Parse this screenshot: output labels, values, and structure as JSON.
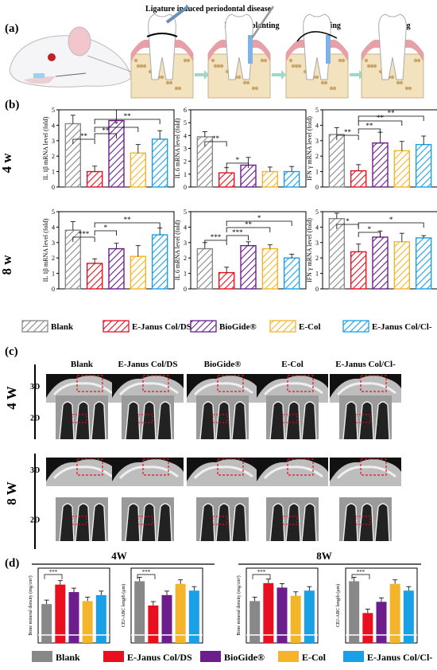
{
  "colors": {
    "gray": "#888888",
    "red": "#e8101e",
    "purple": "#6b1e8c",
    "yellow": "#f5b52a",
    "blue": "#1aa0e6",
    "gum": "#e8a0a8",
    "bone": "#f2e2bd",
    "arrow": "#9fd8c8"
  },
  "panel_a": {
    "label": "(a)",
    "steps": [
      "Ligature induced periodontal disease",
      "Film implanting",
      "Suturing",
      "Healing"
    ]
  },
  "panel_b": {
    "label": "(b)",
    "row_labels": [
      "4 w",
      "8 w"
    ],
    "sig_marks": {
      "two": "**",
      "one": "*",
      "three": "***"
    }
  },
  "groups": [
    "Blank",
    "E-Janus Col/DS",
    "BioGide®",
    "E-Col",
    "E-Janus Col/Cl-"
  ],
  "group_keys": [
    "gray",
    "red",
    "purple",
    "yellow",
    "blue"
  ],
  "chart_data": [
    {
      "type": "bar",
      "row": "4 w",
      "ylabel": "IL 1β mRNA level (fold)",
      "ylim": [
        0,
        5
      ],
      "ticks": [
        0,
        1,
        2,
        3,
        4,
        5
      ],
      "series": [
        {
          "values": [
            4.1,
            1.0,
            4.3,
            2.2,
            3.1
          ],
          "errors": [
            0.55,
            0.35,
            0.7,
            0.55,
            0.55
          ]
        }
      ]
    },
    {
      "type": "bar",
      "row": "4 w",
      "ylabel": "IL 6 mRNA level (fold)",
      "ylim": [
        0,
        6
      ],
      "ticks": [
        0,
        1,
        2,
        3,
        4,
        5,
        6
      ],
      "series": [
        {
          "values": [
            3.9,
            1.1,
            1.7,
            1.2,
            1.2
          ],
          "errors": [
            0.4,
            0.4,
            0.6,
            0.35,
            0.4
          ]
        }
      ]
    },
    {
      "type": "bar",
      "row": "4 w",
      "ylabel": "IFN γ mRNA level (fold)",
      "ylim": [
        0,
        5
      ],
      "ticks": [
        0,
        1,
        2,
        3,
        4,
        5
      ],
      "series": [
        {
          "values": [
            3.4,
            1.05,
            2.85,
            2.35,
            2.75
          ],
          "errors": [
            0.45,
            0.4,
            0.7,
            0.6,
            0.55
          ]
        }
      ]
    },
    {
      "type": "bar",
      "row": "8 w",
      "ylabel": "IL 1β mRNA level (fold)",
      "ylim": [
        0,
        5
      ],
      "ticks": [
        0,
        1,
        2,
        3,
        4,
        5
      ],
      "series": [
        {
          "values": [
            3.8,
            1.65,
            2.6,
            2.1,
            3.5
          ],
          "errors": [
            0.55,
            0.3,
            0.35,
            0.7,
            0.45
          ]
        }
      ]
    },
    {
      "type": "bar",
      "row": "8 w",
      "ylabel": "IL 6 mRNA level (fold)",
      "ylim": [
        0,
        5
      ],
      "ticks": [
        0,
        1,
        2,
        3,
        4,
        5
      ],
      "series": [
        {
          "values": [
            2.6,
            1.05,
            2.8,
            2.6,
            2.0
          ],
          "errors": [
            0.4,
            0.35,
            0.25,
            0.25,
            0.25
          ]
        }
      ]
    },
    {
      "type": "bar",
      "row": "8 w",
      "ylabel": "IFN γ mRNA level (fold)",
      "ylim": [
        0,
        5
      ],
      "ticks": [
        0,
        1,
        2,
        3,
        4,
        5
      ],
      "series": [
        {
          "values": [
            4.55,
            2.4,
            3.35,
            3.05,
            3.3
          ],
          "errors": [
            0.35,
            0.5,
            0.4,
            0.55,
            0.15
          ]
        }
      ]
    }
  ],
  "panel_c": {
    "label": "(c)",
    "columns": [
      "Blank",
      "E-Janus Col/DS",
      "BioGide®",
      "E-Col",
      "E-Janus Col/Cl-"
    ],
    "row_labels": [
      "4 W",
      "8 W"
    ],
    "view_labels": [
      "3D",
      "2D"
    ]
  },
  "panel_d": {
    "label": "(d)",
    "headers": [
      "4W",
      "8W"
    ],
    "y_bmd": "Bone mineral density (mg/cm³)",
    "y_cej": "CEJ-ABC length (μm)",
    "bmd_4w": [
      520,
      780,
      680,
      560,
      640
    ],
    "cej_4w": [
      165,
      100,
      128,
      158,
      140
    ],
    "bmd_8w": [
      560,
      800,
      740,
      630,
      700
    ],
    "cej_8w": [
      165,
      80,
      110,
      158,
      140
    ]
  }
}
